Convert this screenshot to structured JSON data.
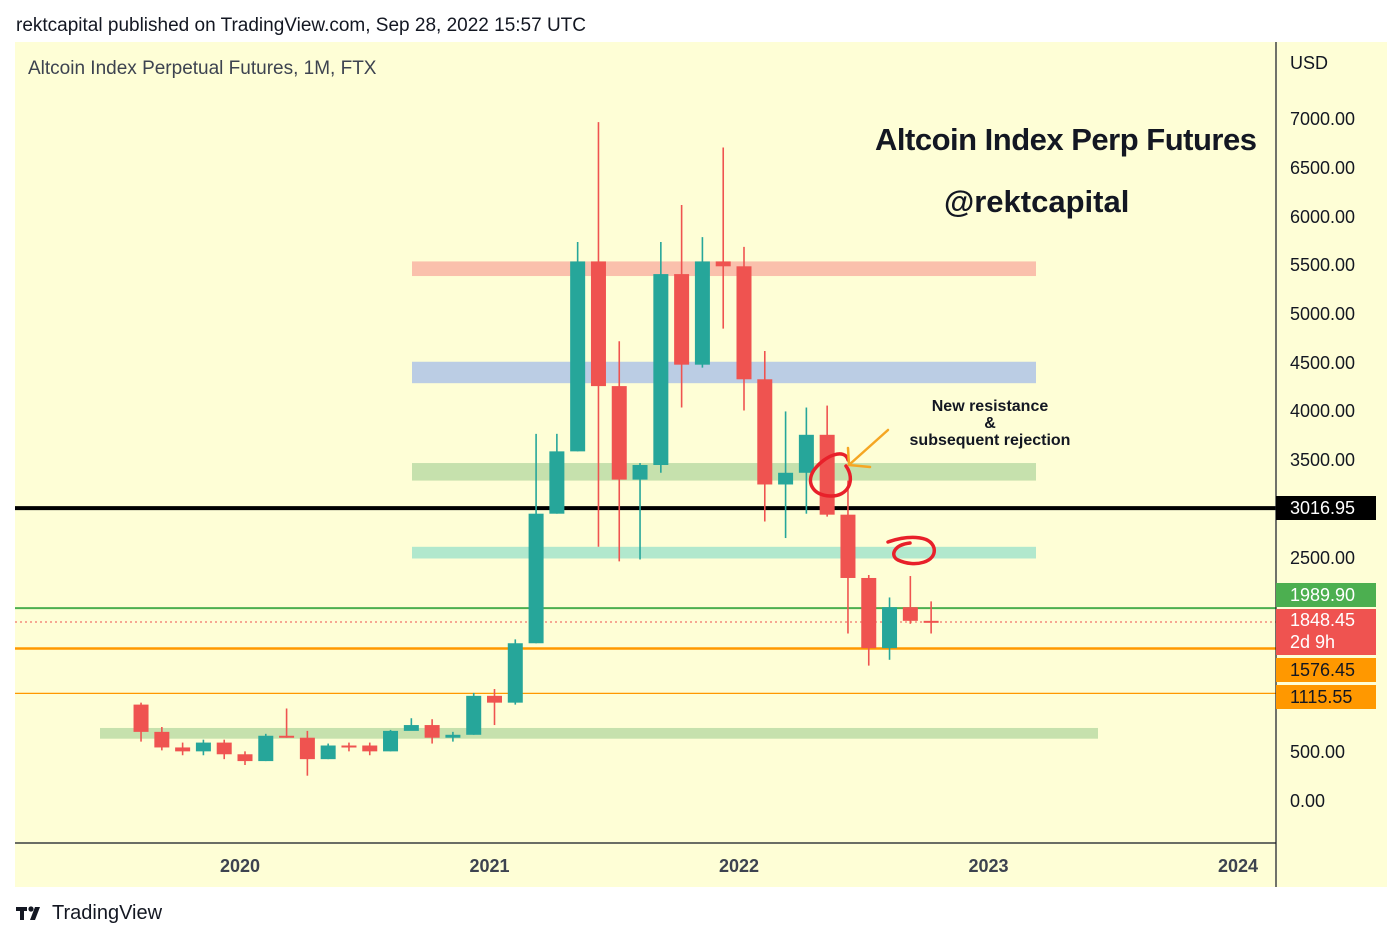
{
  "header": {
    "publisher_line": "rektcapital published on TradingView.com, Sep 28, 2022 15:57 UTC"
  },
  "symbol": "Altcoin Index Perpetual Futures, 1M, FTX",
  "annotations": {
    "title": "Altcoin Index Perp Futures",
    "author": "@rektcapital",
    "note_line1": "New resistance",
    "note_line2": "&",
    "note_line3": "subsequent rejection"
  },
  "footer": {
    "brand": "TradingView"
  },
  "colors": {
    "up": "#26a69a",
    "down": "#ef5350",
    "background": "#fefed6"
  },
  "chart_data": {
    "type": "candlestick",
    "title": "Altcoin Index Perp Futures",
    "currency": "USD",
    "ylim": [
      -200,
      7500
    ],
    "y_ticks": [
      "7000.00",
      "6500.00",
      "6000.00",
      "5500.00",
      "5000.00",
      "4500.00",
      "4000.00",
      "3500.00",
      "2500.00",
      "500.00",
      "0.00"
    ],
    "y_tick_values": [
      7000,
      6500,
      6000,
      5500,
      5000,
      4500,
      4000,
      3500,
      2500,
      500,
      0
    ],
    "x_ticks": [
      "2020",
      "2021",
      "2022",
      "2023",
      "2024"
    ],
    "x_tick_values": [
      2020,
      2021,
      2022,
      2023,
      2024
    ],
    "candles": [
      {
        "t": 2019.5833,
        "o": 1000,
        "h": 1020,
        "l": 620,
        "c": 720
      },
      {
        "t": 2019.6667,
        "o": 720,
        "h": 770,
        "l": 530,
        "c": 560
      },
      {
        "t": 2019.75,
        "o": 560,
        "h": 610,
        "l": 480,
        "c": 520
      },
      {
        "t": 2019.8333,
        "o": 520,
        "h": 640,
        "l": 480,
        "c": 610
      },
      {
        "t": 2019.9167,
        "o": 610,
        "h": 640,
        "l": 440,
        "c": 490
      },
      {
        "t": 2020.0,
        "o": 490,
        "h": 520,
        "l": 380,
        "c": 420
      },
      {
        "t": 2020.0833,
        "o": 420,
        "h": 700,
        "l": 420,
        "c": 680
      },
      {
        "t": 2020.1667,
        "o": 680,
        "h": 960,
        "l": 660,
        "c": 660
      },
      {
        "t": 2020.25,
        "o": 660,
        "h": 730,
        "l": 270,
        "c": 440
      },
      {
        "t": 2020.3333,
        "o": 440,
        "h": 600,
        "l": 440,
        "c": 580
      },
      {
        "t": 2020.4167,
        "o": 580,
        "h": 610,
        "l": 520,
        "c": 560
      },
      {
        "t": 2020.5,
        "o": 580,
        "h": 610,
        "l": 480,
        "c": 520
      },
      {
        "t": 2020.5833,
        "o": 520,
        "h": 740,
        "l": 520,
        "c": 730
      },
      {
        "t": 2020.6667,
        "o": 730,
        "h": 860,
        "l": 740,
        "c": 790
      },
      {
        "t": 2020.75,
        "o": 790,
        "h": 850,
        "l": 600,
        "c": 660
      },
      {
        "t": 2020.8333,
        "o": 660,
        "h": 720,
        "l": 620,
        "c": 690
      },
      {
        "t": 2020.9167,
        "o": 690,
        "h": 1120,
        "l": 690,
        "c": 1090
      },
      {
        "t": 2021.0,
        "o": 1090,
        "h": 1160,
        "l": 790,
        "c": 1020
      },
      {
        "t": 2021.0833,
        "o": 1020,
        "h": 1670,
        "l": 1000,
        "c": 1630
      },
      {
        "t": 2021.1667,
        "o": 1630,
        "h": 3780,
        "l": 1630,
        "c": 2960
      },
      {
        "t": 2021.25,
        "o": 2960,
        "h": 3780,
        "l": 2960,
        "c": 3600
      },
      {
        "t": 2021.3333,
        "o": 3600,
        "h": 5750,
        "l": 3600,
        "c": 5550
      },
      {
        "t": 2021.4167,
        "o": 5550,
        "h": 6980,
        "l": 2620,
        "c": 4270
      },
      {
        "t": 2021.5,
        "o": 4270,
        "h": 4730,
        "l": 2470,
        "c": 3310
      },
      {
        "t": 2021.5833,
        "o": 3310,
        "h": 3480,
        "l": 2490,
        "c": 3460
      },
      {
        "t": 2021.6667,
        "o": 3460,
        "h": 5750,
        "l": 3380,
        "c": 5420
      },
      {
        "t": 2021.75,
        "o": 5420,
        "h": 6130,
        "l": 4050,
        "c": 4490
      },
      {
        "t": 2021.8333,
        "o": 4490,
        "h": 5800,
        "l": 4460,
        "c": 5550
      },
      {
        "t": 2021.9167,
        "o": 5550,
        "h": 6720,
        "l": 4860,
        "c": 5500
      },
      {
        "t": 2022.0,
        "o": 5500,
        "h": 5700,
        "l": 4020,
        "c": 4340
      },
      {
        "t": 2022.0833,
        "o": 4340,
        "h": 4630,
        "l": 2880,
        "c": 3260
      },
      {
        "t": 2022.1667,
        "o": 3260,
        "h": 4010,
        "l": 2710,
        "c": 3380
      },
      {
        "t": 2022.25,
        "o": 3380,
        "h": 4050,
        "l": 2960,
        "c": 3770
      },
      {
        "t": 2022.3333,
        "o": 3770,
        "h": 4070,
        "l": 2930,
        "c": 2950
      },
      {
        "t": 2022.4167,
        "o": 2950,
        "h": 3300,
        "l": 1730,
        "c": 2300
      },
      {
        "t": 2022.5,
        "o": 2300,
        "h": 2330,
        "l": 1400,
        "c": 1580
      },
      {
        "t": 2022.5833,
        "o": 1580,
        "h": 2100,
        "l": 1460,
        "c": 2000
      },
      {
        "t": 2022.6667,
        "o": 2000,
        "h": 2320,
        "l": 1830,
        "c": 1860
      },
      {
        "t": 2022.75,
        "o": 1860,
        "h": 2060,
        "l": 1730,
        "c": 1848
      }
    ],
    "zones": [
      {
        "low": 5400,
        "high": 5550,
        "color": "#f9b9a7"
      },
      {
        "low": 4300,
        "high": 4520,
        "color": "#b4c8e6"
      },
      {
        "low": 3300,
        "high": 3480,
        "color": "#c0dea8"
      },
      {
        "low": 2500,
        "high": 2620,
        "color": "#a8e6cc"
      },
      {
        "low": 650,
        "high": 760,
        "color": "#c0dea8"
      }
    ],
    "levels": [
      {
        "value": 3016.95,
        "label": "3016.95",
        "color": "#000000"
      },
      {
        "value": 1989.9,
        "label": "1989.90",
        "color": "#4caf50"
      },
      {
        "value": 1848.45,
        "label": "1848.45",
        "color": "#ef5350",
        "sub": "2d 9h"
      },
      {
        "value": 1576.45,
        "label": "1576.45",
        "color": "#ff9800"
      },
      {
        "value": 1115.55,
        "label": "1115.55",
        "color": "#ff9800"
      }
    ]
  }
}
